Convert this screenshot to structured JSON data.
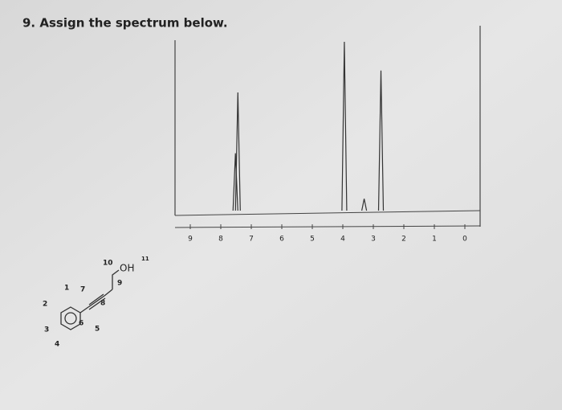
{
  "question": "9. Assign the spectrum below.",
  "spectrum": {
    "xlim": [
      9.5,
      -0.5
    ],
    "xticks": [
      9,
      8,
      7,
      6,
      5,
      4,
      3,
      2,
      1,
      0
    ],
    "ylim": [
      0,
      100
    ],
    "peaks": [
      {
        "ppm": 7.52,
        "height": 34
      },
      {
        "ppm": 7.44,
        "height": 70
      },
      {
        "ppm": 3.95,
        "height": 100
      },
      {
        "ppm": 3.3,
        "height": 7
      },
      {
        "ppm": 2.75,
        "height": 83
      }
    ]
  },
  "molecule": {
    "atoms": [
      {
        "label": "1"
      },
      {
        "label": "2"
      },
      {
        "label": "3"
      },
      {
        "label": "4"
      },
      {
        "label": "5"
      },
      {
        "label": "6"
      },
      {
        "label": "7"
      },
      {
        "label": "8"
      },
      {
        "label": "9"
      },
      {
        "label": "10"
      },
      {
        "label": "11"
      }
    ],
    "group": "OH"
  }
}
